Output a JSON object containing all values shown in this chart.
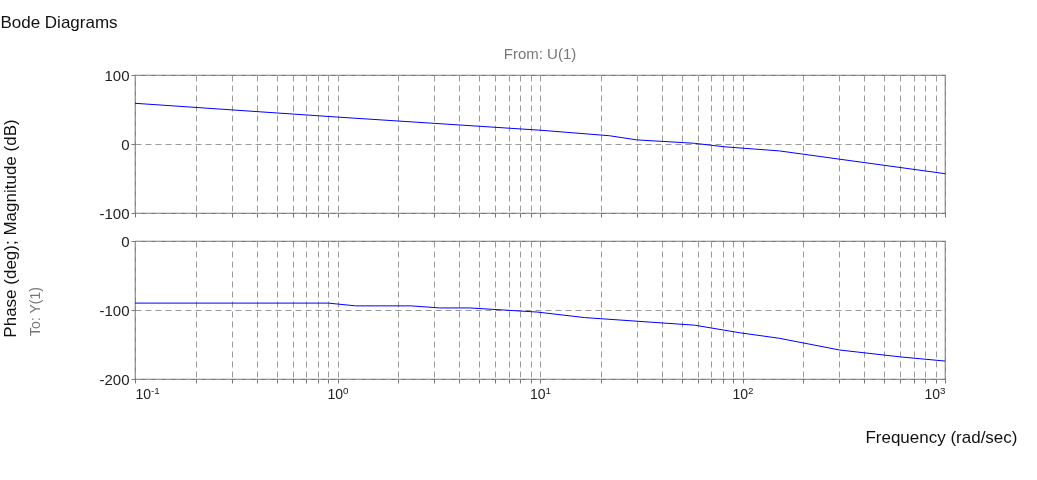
{
  "chart_data": [
    {
      "type": "line",
      "title": "Bode Diagrams",
      "subtitle": "From: U(1)",
      "ylabel": "Phase (deg); Magnitude (dB)",
      "log": "x",
      "grid": true,
      "tick_labels": "y",
      "legend": false,
      "xlim": [
        0.1,
        1000
      ],
      "xticks": [
        {
          "value": 0.1,
          "label": null
        },
        {
          "value": 0.2,
          "label": null
        },
        {
          "value": 0.3,
          "label": null
        },
        {
          "value": 0.4,
          "label": null
        },
        {
          "value": 0.5,
          "label": null
        },
        {
          "value": 0.6,
          "label": null
        },
        {
          "value": 0.7,
          "label": null
        },
        {
          "value": 0.8,
          "label": null
        },
        {
          "value": 0.9,
          "label": null
        },
        {
          "value": 1,
          "label": null
        },
        {
          "value": 2,
          "label": null
        },
        {
          "value": 3,
          "label": null
        },
        {
          "value": 4,
          "label": null
        },
        {
          "value": 5,
          "label": null
        },
        {
          "value": 6,
          "label": null
        },
        {
          "value": 7,
          "label": null
        },
        {
          "value": 8,
          "label": null
        },
        {
          "value": 9,
          "label": null
        },
        {
          "value": 10,
          "label": null
        },
        {
          "value": 20,
          "label": null
        },
        {
          "value": 30,
          "label": null
        },
        {
          "value": 40,
          "label": null
        },
        {
          "value": 50,
          "label": null
        },
        {
          "value": 60,
          "label": null
        },
        {
          "value": 70,
          "label": null
        },
        {
          "value": 80,
          "label": null
        },
        {
          "value": 90,
          "label": null
        },
        {
          "value": 100,
          "label": null
        },
        {
          "value": 200,
          "label": null
        },
        {
          "value": 300,
          "label": null
        },
        {
          "value": 400,
          "label": null
        },
        {
          "value": 500,
          "label": null
        },
        {
          "value": 600,
          "label": null
        },
        {
          "value": 700,
          "label": null
        },
        {
          "value": 800,
          "label": null
        },
        {
          "value": 900,
          "label": null
        },
        {
          "value": 1000,
          "label": null
        }
      ],
      "ylim": [
        -100,
        100
      ],
      "yticks": [
        -100,
        0,
        100
      ],
      "series": [
        {
          "color": "#0000ff",
          "x": [
            0.1,
            1,
            10,
            22,
            30,
            58,
            81,
            152,
            1000
          ],
          "values": [
            59,
            39,
            20,
            12,
            6,
            1,
            -4,
            -10,
            -43
          ]
        }
      ]
    },
    {
      "type": "line",
      "ylabel": "To: Y(1)",
      "xlabel": "Frequency (rad/sec)",
      "log": "x",
      "grid": true,
      "legend": false,
      "xlim": [
        0.1,
        1000
      ],
      "xticks": [
        {
          "value": 0.1,
          "label": "10$^{-1}$"
        },
        {
          "value": 0.2,
          "label": null
        },
        {
          "value": 0.3,
          "label": null
        },
        {
          "value": 0.4,
          "label": null
        },
        {
          "value": 0.5,
          "label": null
        },
        {
          "value": 0.6,
          "label": null
        },
        {
          "value": 0.7,
          "label": null
        },
        {
          "value": 0.8,
          "label": null
        },
        {
          "value": 0.9,
          "label": null
        },
        {
          "value": 1,
          "label": "10$^{0}$"
        },
        {
          "value": 2,
          "label": null
        },
        {
          "value": 3,
          "label": null
        },
        {
          "value": 4,
          "label": null
        },
        {
          "value": 5,
          "label": null
        },
        {
          "value": 6,
          "label": null
        },
        {
          "value": 7,
          "label": null
        },
        {
          "value": 8,
          "label": null
        },
        {
          "value": 9,
          "label": null
        },
        {
          "value": 10,
          "label": "10$^{1}$"
        },
        {
          "value": 20,
          "label": null
        },
        {
          "value": 30,
          "label": null
        },
        {
          "value": 40,
          "label": null
        },
        {
          "value": 50,
          "label": null
        },
        {
          "value": 60,
          "label": null
        },
        {
          "value": 70,
          "label": null
        },
        {
          "value": 80,
          "label": null
        },
        {
          "value": 90,
          "label": null
        },
        {
          "value": 100,
          "label": "10$^{2}$"
        },
        {
          "value": 200,
          "label": null
        },
        {
          "value": 300,
          "label": null
        },
        {
          "value": 400,
          "label": null
        },
        {
          "value": 500,
          "label": null
        },
        {
          "value": 600,
          "label": null
        },
        {
          "value": 700,
          "label": null
        },
        {
          "value": 800,
          "label": null
        },
        {
          "value": 900,
          "label": null
        },
        {
          "value": 1000,
          "label": "10$^{3}$"
        }
      ],
      "ylim": [
        -200,
        0
      ],
      "yticks": [
        -200,
        -100,
        0
      ],
      "series": [
        {
          "color": "#0000ff",
          "x": [
            0.1,
            0.9,
            1.23,
            2.3,
            3.2,
            4.5,
            9.7,
            16.6,
            58,
            97,
            152,
            302,
            603,
            1000
          ],
          "values": [
            -90,
            -90,
            -94,
            -94,
            -97,
            -97,
            -103,
            -111,
            -122,
            -133,
            -141,
            -158,
            -168,
            -174
          ]
        }
      ]
    }
  ]
}
